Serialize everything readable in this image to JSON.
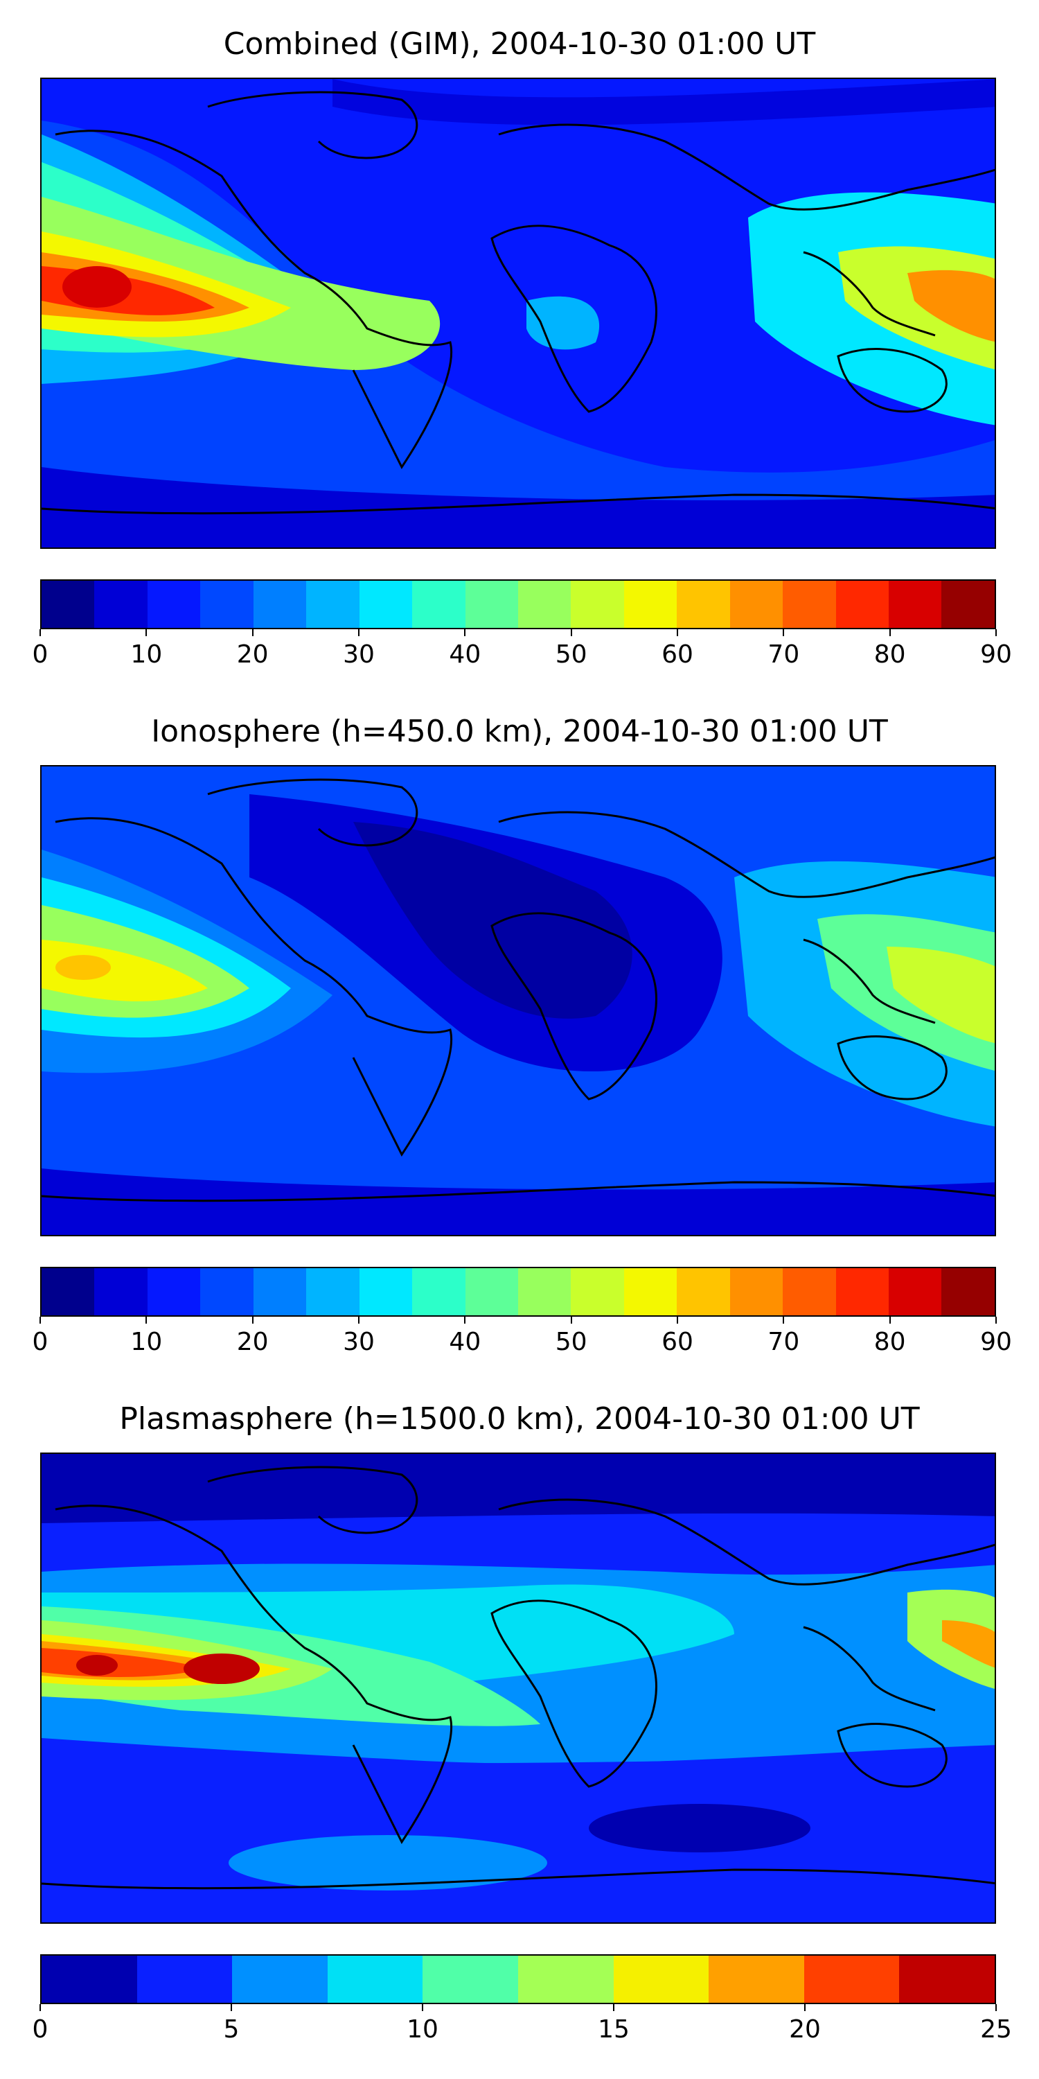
{
  "panels": [
    {
      "title": "Combined (GIM), 2004-10-30 01:00 UT",
      "colorbar": {
        "ticks": [
          "0",
          "10",
          "20",
          "30",
          "40",
          "50",
          "60",
          "70",
          "80",
          "90"
        ],
        "colors": [
          "#00008d",
          "#0000d6",
          "#0518ff",
          "#0048ff",
          "#007fff",
          "#00b4ff",
          "#00e8ff",
          "#2cffc9",
          "#5dff98",
          "#98ff5d",
          "#c9ff2c",
          "#f4f800",
          "#ffc400",
          "#ff9000",
          "#ff5c00",
          "#ff2800",
          "#d80000",
          "#960000"
        ]
      }
    },
    {
      "title": "Ionosphere  (h=450.0 km), 2004-10-30 01:00 UT",
      "colorbar": {
        "ticks": [
          "0",
          "10",
          "20",
          "30",
          "40",
          "50",
          "60",
          "70",
          "80",
          "90"
        ],
        "colors": [
          "#00008d",
          "#0000d6",
          "#0518ff",
          "#0048ff",
          "#007fff",
          "#00b4ff",
          "#00e8ff",
          "#2cffc9",
          "#5dff98",
          "#98ff5d",
          "#c9ff2c",
          "#f4f800",
          "#ffc400",
          "#ff9000",
          "#ff5c00",
          "#ff2800",
          "#d80000",
          "#960000"
        ]
      }
    },
    {
      "title": "Plasmasphere (h=1500.0 km), 2004-10-30 01:00 UT",
      "colorbar": {
        "ticks": [
          "0",
          "5",
          "10",
          "15",
          "20",
          "25"
        ],
        "colors": [
          "#0000b0",
          "#0a20ff",
          "#0090ff",
          "#00e0f5",
          "#50ffa8",
          "#a4ff55",
          "#f5f000",
          "#ffa000",
          "#ff4000",
          "#c00000"
        ]
      }
    }
  ]
}
